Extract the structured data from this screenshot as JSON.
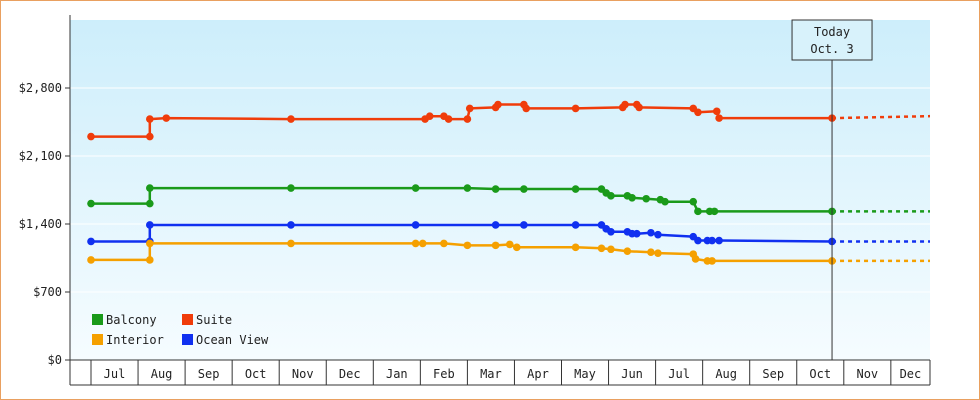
{
  "chart_data": {
    "type": "line",
    "title": "",
    "xlabel": "",
    "ylabel": "",
    "ylim": [
      0,
      3500
    ],
    "y_ticks": [
      0,
      700,
      1400,
      2100,
      2800
    ],
    "y_tick_labels": [
      "$0",
      "$700",
      "$1,400",
      "$2,100",
      "$2,800"
    ],
    "x_months": [
      "Jul",
      "Aug",
      "Sep",
      "Oct",
      "Nov",
      "Dec",
      "Jan",
      "Feb",
      "Mar",
      "Apr",
      "May",
      "Jun",
      "Jul",
      "Aug",
      "Sep",
      "Oct",
      "Nov",
      "Dec"
    ],
    "today_marker": {
      "line1": "Today",
      "line2": "Oct. 3",
      "x": 15.75
    },
    "grid": true,
    "background": "light-blue gradient",
    "legend_position": "bottom-left",
    "legend": [
      {
        "name": "Balcony",
        "color": "#1a9a1a"
      },
      {
        "name": "Suite",
        "color": "#f03c0a"
      },
      {
        "name": "Interior",
        "color": "#f5a000"
      },
      {
        "name": "Ocean View",
        "color": "#1030f0"
      }
    ],
    "series": [
      {
        "name": "Suite",
        "color": "#f03c0a",
        "points": [
          [
            0.0,
            2300
          ],
          [
            1.25,
            2300
          ],
          [
            1.25,
            2480
          ],
          [
            1.6,
            2490
          ],
          [
            4.25,
            2480
          ],
          [
            7.1,
            2480
          ],
          [
            7.2,
            2510
          ],
          [
            7.5,
            2510
          ],
          [
            7.6,
            2480
          ],
          [
            8.0,
            2480
          ],
          [
            8.05,
            2590
          ],
          [
            8.6,
            2600
          ],
          [
            8.65,
            2630
          ],
          [
            9.2,
            2630
          ],
          [
            9.25,
            2590
          ],
          [
            10.3,
            2590
          ],
          [
            11.3,
            2600
          ],
          [
            11.35,
            2630
          ],
          [
            11.6,
            2630
          ],
          [
            11.65,
            2600
          ],
          [
            12.8,
            2590
          ],
          [
            12.9,
            2550
          ],
          [
            13.3,
            2560
          ],
          [
            13.35,
            2490
          ],
          [
            15.75,
            2490
          ]
        ],
        "projection_end": [
          18.6,
          2510
        ]
      },
      {
        "name": "Balcony",
        "color": "#1a9a1a",
        "points": [
          [
            0.0,
            1610
          ],
          [
            1.25,
            1610
          ],
          [
            1.25,
            1770
          ],
          [
            4.25,
            1770
          ],
          [
            6.9,
            1770
          ],
          [
            8.0,
            1770
          ],
          [
            8.6,
            1760
          ],
          [
            9.2,
            1760
          ],
          [
            10.3,
            1760
          ],
          [
            10.85,
            1760
          ],
          [
            10.95,
            1720
          ],
          [
            11.05,
            1690
          ],
          [
            11.4,
            1690
          ],
          [
            11.5,
            1670
          ],
          [
            11.8,
            1660
          ],
          [
            12.1,
            1650
          ],
          [
            12.2,
            1630
          ],
          [
            12.8,
            1630
          ],
          [
            12.9,
            1530
          ],
          [
            13.15,
            1530
          ],
          [
            13.25,
            1530
          ],
          [
            15.75,
            1530
          ]
        ],
        "projection_end": [
          18.6,
          1530
        ]
      },
      {
        "name": "Ocean View",
        "color": "#1030f0",
        "points": [
          [
            0.0,
            1220
          ],
          [
            1.25,
            1220
          ],
          [
            1.25,
            1390
          ],
          [
            4.25,
            1390
          ],
          [
            6.9,
            1390
          ],
          [
            8.6,
            1390
          ],
          [
            9.2,
            1390
          ],
          [
            10.3,
            1390
          ],
          [
            10.85,
            1390
          ],
          [
            10.95,
            1350
          ],
          [
            11.05,
            1320
          ],
          [
            11.4,
            1320
          ],
          [
            11.5,
            1300
          ],
          [
            11.6,
            1300
          ],
          [
            11.9,
            1310
          ],
          [
            12.05,
            1290
          ],
          [
            12.8,
            1270
          ],
          [
            12.9,
            1230
          ],
          [
            13.1,
            1230
          ],
          [
            13.2,
            1230
          ],
          [
            13.35,
            1230
          ],
          [
            15.75,
            1220
          ]
        ],
        "projection_end": [
          18.6,
          1220
        ]
      },
      {
        "name": "Interior",
        "color": "#f5a000",
        "points": [
          [
            0.0,
            1030
          ],
          [
            1.25,
            1030
          ],
          [
            1.25,
            1200
          ],
          [
            4.25,
            1200
          ],
          [
            6.9,
            1200
          ],
          [
            7.05,
            1200
          ],
          [
            7.5,
            1200
          ],
          [
            8.0,
            1180
          ],
          [
            8.6,
            1180
          ],
          [
            8.9,
            1190
          ],
          [
            9.05,
            1160
          ],
          [
            10.3,
            1160
          ],
          [
            10.85,
            1150
          ],
          [
            11.05,
            1140
          ],
          [
            11.4,
            1120
          ],
          [
            11.9,
            1110
          ],
          [
            12.05,
            1100
          ],
          [
            12.8,
            1090
          ],
          [
            12.85,
            1040
          ],
          [
            13.1,
            1020
          ],
          [
            13.2,
            1020
          ],
          [
            15.75,
            1020
          ]
        ],
        "projection_end": [
          18.6,
          1020
        ]
      }
    ]
  }
}
